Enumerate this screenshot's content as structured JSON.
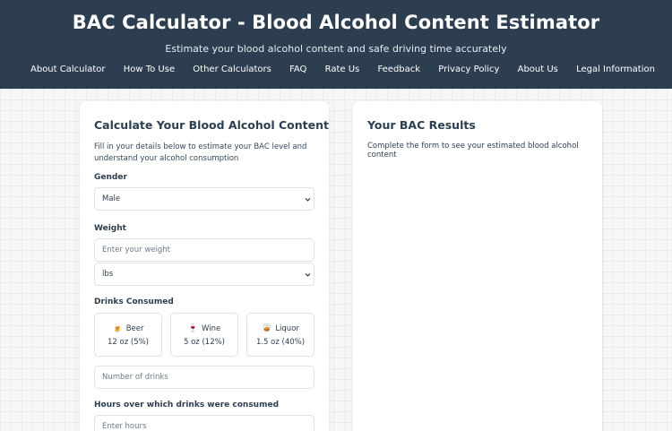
{
  "header": {
    "title": "BAC Calculator - Blood Alcohol Content Estimator",
    "subtitle": "Estimate your blood alcohol content and safe driving time accurately"
  },
  "nav": {
    "items": [
      "About Calculator",
      "How To Use",
      "Other Calculators",
      "FAQ",
      "Rate Us",
      "Feedback",
      "Privacy Policy",
      "About Us",
      "Legal Information"
    ]
  },
  "calculator": {
    "title": "Calculate Your Blood Alcohol Content",
    "description": "Fill in your details below to estimate your BAC level and understand your alcohol consumption",
    "gender": {
      "label": "Gender",
      "value": "Male"
    },
    "weight": {
      "label": "Weight",
      "placeholder": "Enter your weight",
      "unit": "lbs"
    },
    "drinks": {
      "label": "Drinks Consumed",
      "options": [
        {
          "name": "Beer",
          "icon": "beer-mug-icon",
          "spec": "12 oz (5%)"
        },
        {
          "name": "Wine",
          "icon": "wine-glass-icon",
          "spec": "5 oz (12%)"
        },
        {
          "name": "Liquor",
          "icon": "liquor-icon",
          "spec": "1.5 oz (40%)"
        }
      ],
      "count_placeholder": "Number of drinks"
    },
    "hours": {
      "label": "Hours over which drinks were consumed",
      "placeholder": "Enter hours"
    }
  },
  "results": {
    "title": "Your BAC Results",
    "message": "Complete the form to see your estimated blood alcohol content"
  },
  "colors": {
    "header_bg": "#2c3e50",
    "page_bg": "#f4f6f8",
    "card_bg": "#ffffff",
    "text": "#2c3e50"
  }
}
